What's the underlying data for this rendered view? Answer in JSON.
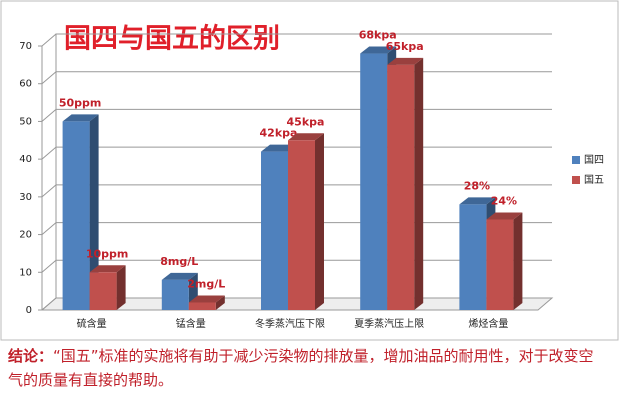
{
  "chart_data": {
    "type": "bar3d",
    "title": "国四与国五的区别",
    "categories": [
      "硫含量",
      "锰含量",
      "冬季蒸汽压下限",
      "夏季蒸汽压上限",
      "烯烃含量"
    ],
    "series": [
      {
        "name": "国四",
        "color": "#4f81bd",
        "values": [
          50,
          8,
          42,
          68,
          28
        ],
        "value_labels": [
          "50ppm",
          "8mg/L",
          "42kpa",
          "68kpa",
          "28%"
        ]
      },
      {
        "name": "国五",
        "color": "#c0504d",
        "values": [
          10,
          2,
          45,
          65,
          24
        ],
        "value_labels": [
          "10ppm",
          "2mg/L",
          "45kpa",
          "65kpa",
          "24%"
        ]
      }
    ],
    "ylim": [
      0,
      70
    ],
    "yticks": [
      0,
      10,
      20,
      30,
      40,
      50,
      60,
      70
    ],
    "grid": true,
    "legend": "right"
  },
  "conclusion": {
    "label": "结论：",
    "text": "“国五”标准的实施将有助于减少污染物的排放量，增加油品的耐用性，对于改变空气的质量有直接的帮助。"
  }
}
